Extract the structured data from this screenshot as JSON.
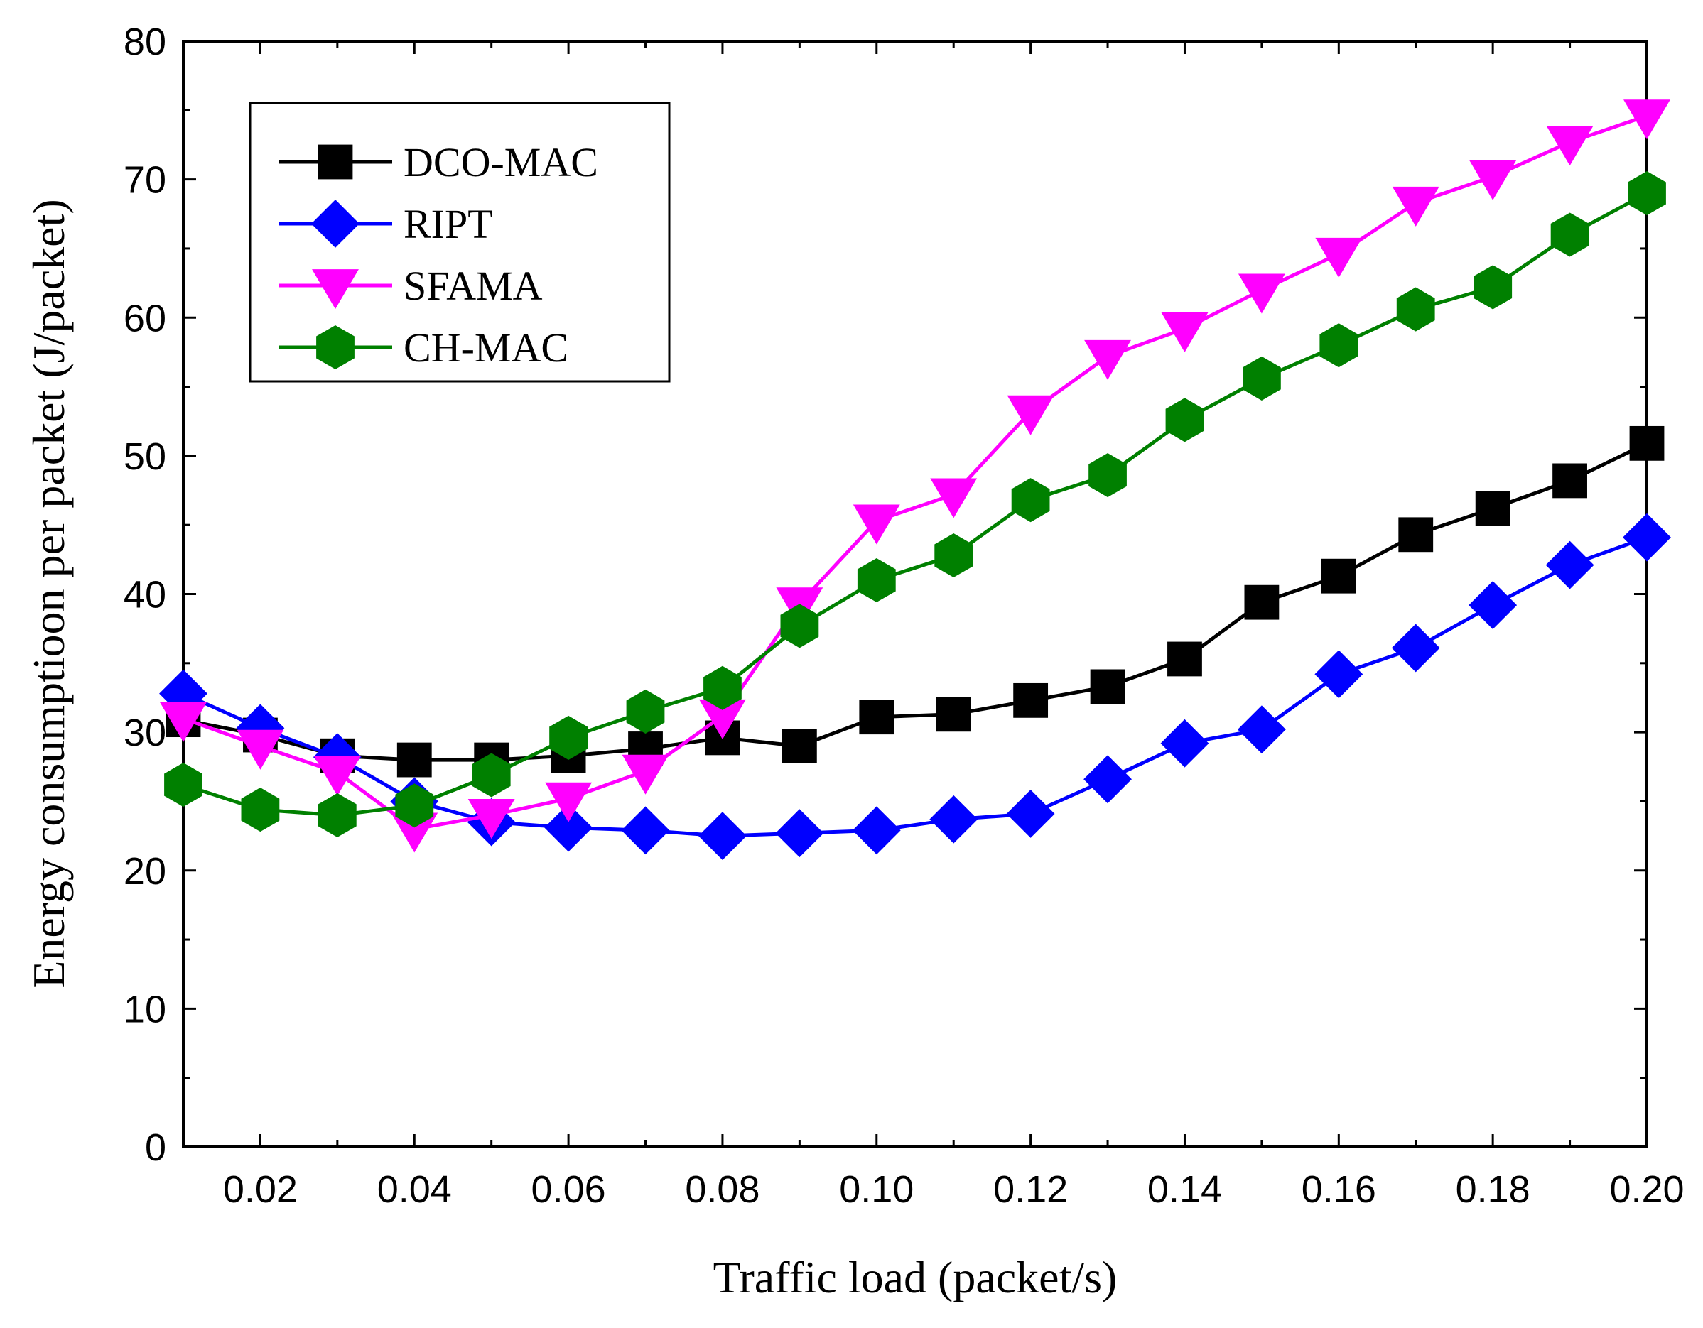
{
  "chart_data": {
    "type": "line",
    "title": "",
    "xlabel": "Traffic load (packet/s)",
    "ylabel": "Energy consumptioon per packet (J/packet)",
    "xlim": [
      0.01,
      0.2
    ],
    "ylim": [
      0,
      80
    ],
    "xticks": [
      "0.02",
      "0.04",
      "0.06",
      "0.08",
      "0.10",
      "0.12",
      "0.14",
      "0.16",
      "0.18",
      "0.20"
    ],
    "xtick_values": [
      0.02,
      0.04,
      0.06,
      0.08,
      0.1,
      0.12,
      0.14,
      0.16,
      0.18,
      0.2
    ],
    "yticks": [
      "0",
      "10",
      "20",
      "30",
      "40",
      "50",
      "60",
      "70",
      "80"
    ],
    "ytick_values": [
      0,
      10,
      20,
      30,
      40,
      50,
      60,
      70,
      80
    ],
    "grid": false,
    "legend_position": "top-left",
    "x": [
      0.01,
      0.02,
      0.03,
      0.04,
      0.05,
      0.06,
      0.07,
      0.08,
      0.09,
      0.1,
      0.11,
      0.12,
      0.13,
      0.14,
      0.15,
      0.16,
      0.17,
      0.18,
      0.19,
      0.2
    ],
    "series": [
      {
        "name": "DCO-MAC",
        "color": "#000000",
        "marker": "square",
        "values": [
          30.9,
          29.8,
          28.3,
          28.0,
          28.0,
          28.3,
          28.8,
          29.6,
          29.0,
          31.1,
          31.3,
          32.3,
          33.3,
          35.3,
          39.4,
          41.3,
          44.3,
          46.2,
          48.2,
          50.9
        ]
      },
      {
        "name": "RIPT",
        "color": "#0000ff",
        "marker": "diamond",
        "values": [
          32.8,
          30.3,
          28.2,
          25.0,
          23.5,
          23.1,
          22.9,
          22.5,
          22.7,
          22.9,
          23.7,
          24.1,
          26.6,
          29.2,
          30.2,
          34.2,
          36.1,
          39.2,
          42.1,
          44.1
        ]
      },
      {
        "name": "SFAMA",
        "color": "#ff00ff",
        "marker": "triangle-down",
        "values": [
          31.0,
          29.0,
          27.1,
          23.0,
          24.0,
          25.2,
          27.2,
          31.2,
          39.3,
          45.3,
          47.2,
          53.2,
          57.2,
          59.2,
          62.0,
          64.6,
          68.3,
          70.2,
          72.7,
          74.6
        ]
      },
      {
        "name": "CH-MAC",
        "color": "#008000",
        "marker": "hexagon",
        "values": [
          26.2,
          24.4,
          24.0,
          24.7,
          26.9,
          29.6,
          31.5,
          33.2,
          37.7,
          41.0,
          42.8,
          46.8,
          48.6,
          52.6,
          55.6,
          58.0,
          60.6,
          62.2,
          66.0,
          69.0
        ]
      }
    ]
  }
}
